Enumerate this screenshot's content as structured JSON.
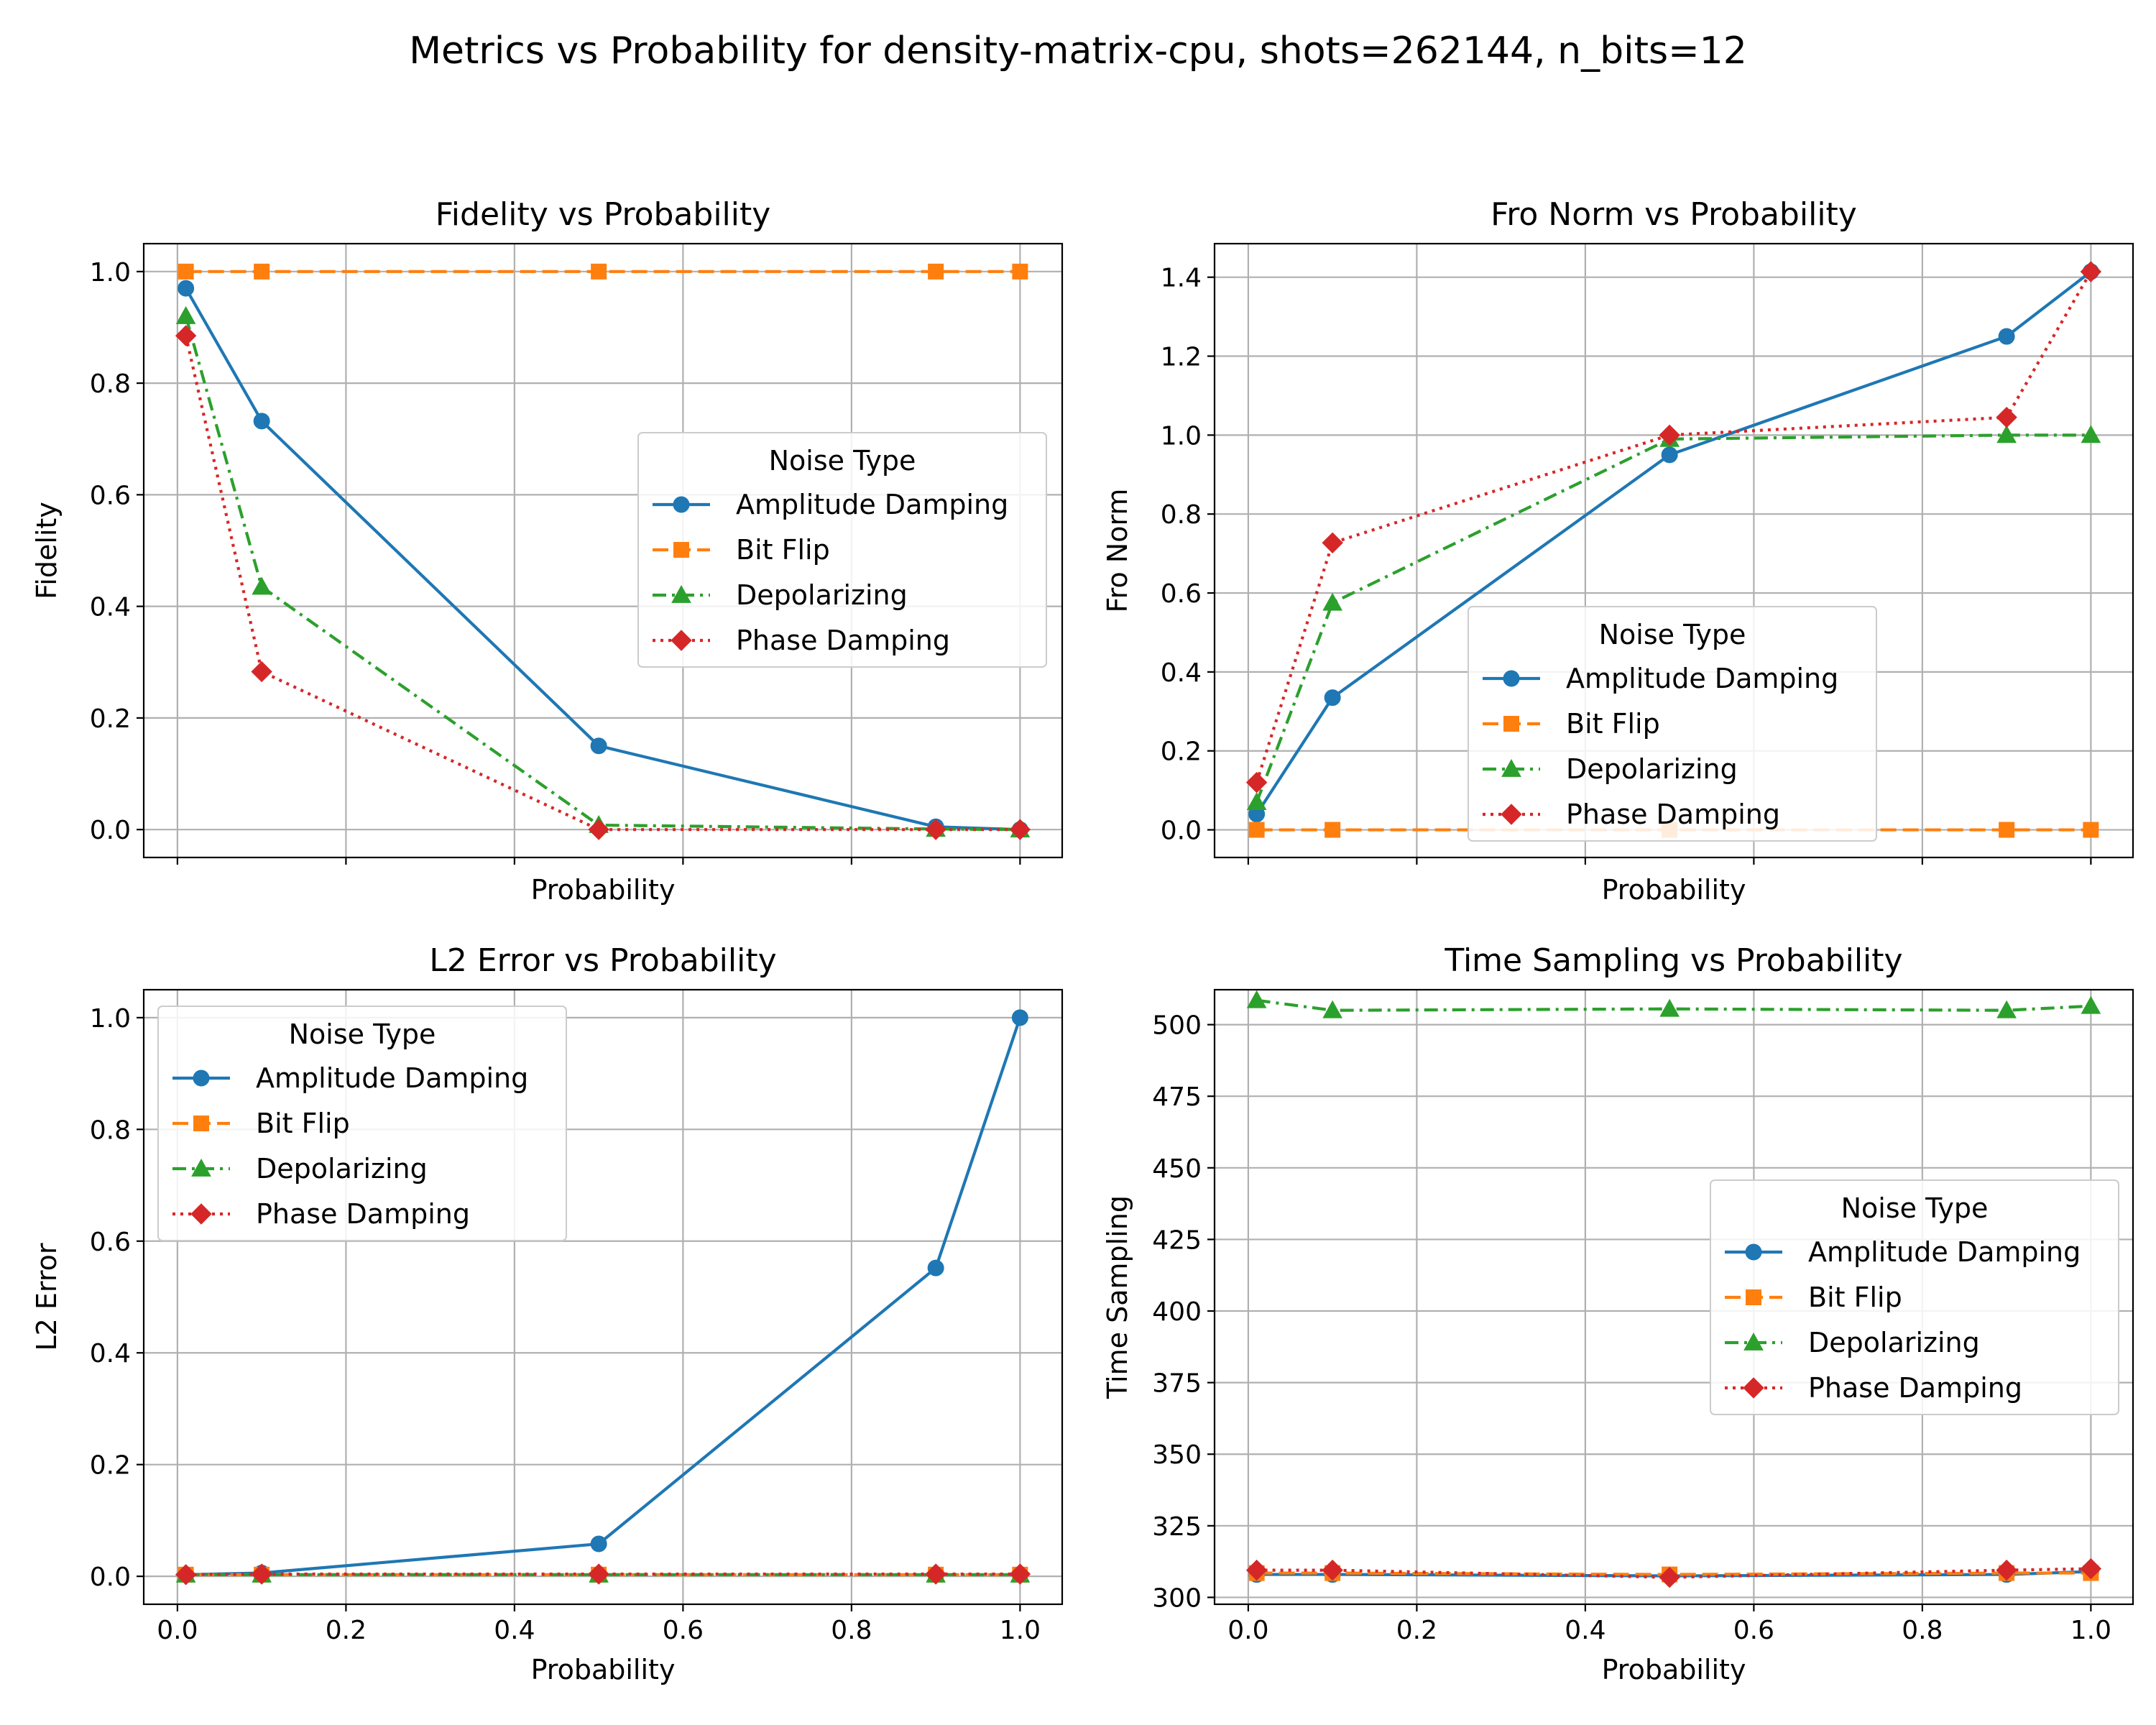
{
  "suptitle": "Metrics vs Probability for density-matrix-cpu, shots=262144, n_bits=12",
  "legend_title": "Noise Type",
  "series_style": [
    {
      "name": "Amplitude Damping",
      "color": "#1f77b4",
      "marker": "circle",
      "line": "solid"
    },
    {
      "name": "Bit Flip",
      "color": "#ff7f0e",
      "marker": "square",
      "line": "dashed"
    },
    {
      "name": "Depolarizing",
      "color": "#2ca02c",
      "marker": "triangle-up",
      "line": "dash-dot"
    },
    {
      "name": "Phase Damping",
      "color": "#d62728",
      "marker": "diamond",
      "line": "dotted"
    }
  ],
  "chart_data": [
    {
      "type": "line",
      "title": "Fidelity vs Probability",
      "xlabel": "Probability",
      "ylabel": "Fidelity",
      "x": [
        0.01,
        0.1,
        0.5,
        0.9,
        1.0
      ],
      "xlim": [
        -0.04,
        1.05
      ],
      "ylim": [
        -0.05,
        1.05
      ],
      "xticks": [
        0.0,
        0.2,
        0.4,
        0.6,
        0.8,
        1.0
      ],
      "yticks": [
        0.0,
        0.2,
        0.4,
        0.6,
        0.8,
        1.0
      ],
      "show_xticklabels": false,
      "grid": true,
      "legend": "center-right",
      "series": [
        {
          "name": "Amplitude Damping",
          "values": [
            0.97,
            0.732,
            0.15,
            0.005,
            0.0
          ]
        },
        {
          "name": "Bit Flip",
          "values": [
            1.0,
            1.0,
            1.0,
            1.0,
            1.0
          ]
        },
        {
          "name": "Depolarizing",
          "values": [
            0.92,
            0.435,
            0.008,
            0.001,
            0.0
          ]
        },
        {
          "name": "Phase Damping",
          "values": [
            0.885,
            0.283,
            0.0,
            0.0,
            0.0
          ]
        }
      ]
    },
    {
      "type": "line",
      "title": "Fro Norm vs Probability",
      "xlabel": "Probability",
      "ylabel": "Fro Norm",
      "x": [
        0.01,
        0.1,
        0.5,
        0.9,
        1.0
      ],
      "xlim": [
        -0.04,
        1.05
      ],
      "ylim": [
        -0.07,
        1.485
      ],
      "xticks": [
        0.0,
        0.2,
        0.4,
        0.6,
        0.8,
        1.0
      ],
      "yticks": [
        0.0,
        0.2,
        0.4,
        0.6,
        0.8,
        1.0,
        1.2,
        1.4
      ],
      "show_xticklabels": false,
      "grid": true,
      "legend": "lower-center",
      "series": [
        {
          "name": "Amplitude Damping",
          "values": [
            0.04,
            0.335,
            0.95,
            1.25,
            1.414
          ]
        },
        {
          "name": "Bit Flip",
          "values": [
            0.0,
            0.0,
            0.0,
            0.0,
            0.0
          ]
        },
        {
          "name": "Depolarizing",
          "values": [
            0.07,
            0.575,
            0.99,
            1.0,
            1.0
          ]
        },
        {
          "name": "Phase Damping",
          "values": [
            0.12,
            0.727,
            1.0,
            1.045,
            1.414
          ]
        }
      ]
    },
    {
      "type": "line",
      "title": "L2 Error vs Probability",
      "xlabel": "Probability",
      "ylabel": "L2 Error",
      "x": [
        0.01,
        0.1,
        0.5,
        0.9,
        1.0
      ],
      "xlim": [
        -0.04,
        1.05
      ],
      "ylim": [
        -0.05,
        1.05
      ],
      "xticks": [
        0.0,
        0.2,
        0.4,
        0.6,
        0.8,
        1.0
      ],
      "yticks": [
        0.0,
        0.2,
        0.4,
        0.6,
        0.8,
        1.0
      ],
      "show_xticklabels": true,
      "grid": true,
      "legend": "upper-left",
      "series": [
        {
          "name": "Amplitude Damping",
          "values": [
            0.003,
            0.006,
            0.058,
            0.552,
            1.0
          ]
        },
        {
          "name": "Bit Flip",
          "values": [
            0.003,
            0.003,
            0.003,
            0.003,
            0.003
          ]
        },
        {
          "name": "Depolarizing",
          "values": [
            0.003,
            0.003,
            0.003,
            0.003,
            0.003
          ]
        },
        {
          "name": "Phase Damping",
          "values": [
            0.003,
            0.004,
            0.004,
            0.004,
            0.004
          ]
        }
      ]
    },
    {
      "type": "line",
      "title": "Time Sampling vs Probability",
      "xlabel": "Probability",
      "ylabel": "Time Sampling",
      "x": [
        0.01,
        0.1,
        0.5,
        0.9,
        1.0
      ],
      "xlim": [
        -0.04,
        1.05
      ],
      "ylim": [
        297.6,
        512.2
      ],
      "xticks": [
        0.0,
        0.2,
        0.4,
        0.6,
        0.8,
        1.0
      ],
      "yticks": [
        300,
        325,
        350,
        375,
        400,
        425,
        450,
        475,
        500
      ],
      "show_xticklabels": true,
      "grid": true,
      "legend": "center-right",
      "series": [
        {
          "name": "Amplitude Damping",
          "values": [
            308.0,
            308.0,
            307.5,
            308.0,
            309.0
          ]
        },
        {
          "name": "Bit Flip",
          "values": [
            308.5,
            308.5,
            308.0,
            308.5,
            308.5
          ]
        },
        {
          "name": "Depolarizing",
          "values": [
            508.5,
            505.0,
            505.5,
            505.0,
            506.5
          ]
        },
        {
          "name": "Phase Damping",
          "values": [
            309.5,
            309.5,
            307.0,
            309.5,
            310.0
          ]
        }
      ]
    }
  ]
}
